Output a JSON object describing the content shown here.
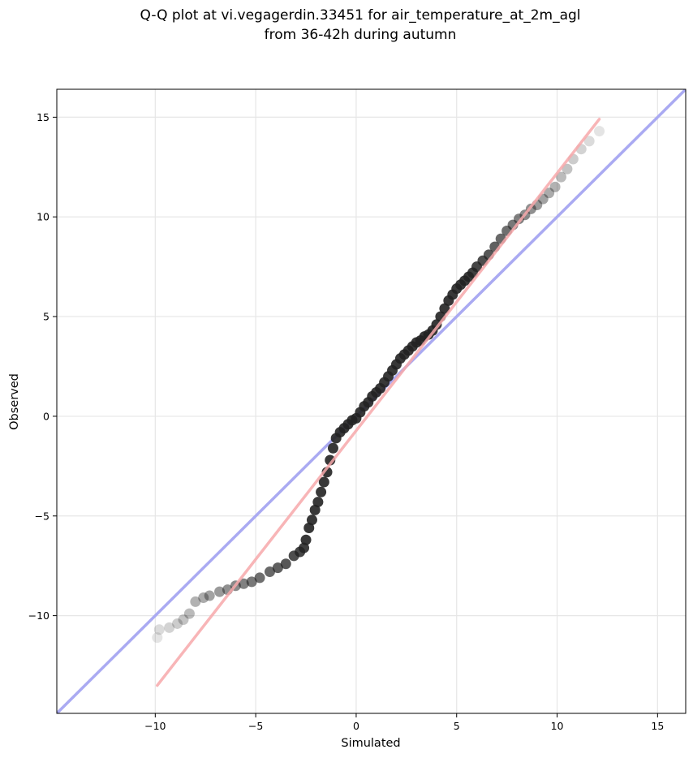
{
  "chart_data": {
    "type": "scatter",
    "title_lines": [
      "Q-Q plot at vi.vegagerdin.33451 for air_temperature_at_2m_agl",
      "from 36-42h during autumn"
    ],
    "xlabel": "Simulated",
    "ylabel": "Observed",
    "xlim": [
      -14.9,
      16.4
    ],
    "ylim": [
      -14.9,
      16.4
    ],
    "x_ticks": [
      -10,
      -5,
      0,
      5,
      10,
      15
    ],
    "y_ticks": [
      -10,
      -5,
      0,
      5,
      10,
      15
    ],
    "tick_labels": {
      "x": [
        "−10",
        "−5",
        "0",
        "5",
        "10",
        "15"
      ],
      "y": [
        "−10",
        "−5",
        "0",
        "5",
        "10",
        "15"
      ]
    },
    "grid": true,
    "colors": {
      "identity_line": "#aaaaf2",
      "fit_line": "#f7a8aa",
      "points": "#222222"
    },
    "identity_line": {
      "x": [
        -14.9,
        16.4
      ],
      "y": [
        -14.9,
        16.4
      ]
    },
    "fit_line": {
      "x": [
        -9.9,
        12.1
      ],
      "y": [
        -13.5,
        14.9
      ]
    },
    "series": [
      {
        "x": [
          -9.9,
          -9.8,
          -9.3,
          -8.9,
          -8.6,
          -8.3,
          -8.0,
          -7.6,
          -7.3,
          -6.8,
          -6.4,
          -6.0,
          -5.6,
          -5.2,
          -4.8,
          -4.3,
          -3.9,
          -3.5,
          -3.1,
          -2.8,
          -2.6,
          -2.5,
          -2.35,
          -2.2,
          -2.05,
          -1.9,
          -1.75,
          -1.6,
          -1.45,
          -1.3,
          -1.15,
          -1.0,
          -0.8,
          -0.6,
          -0.4,
          -0.2,
          0.0,
          0.2,
          0.4,
          0.6,
          0.8,
          1.0,
          1.2,
          1.4,
          1.6,
          1.8,
          2.0,
          2.2,
          2.4,
          2.6,
          2.8,
          3.0,
          3.2,
          3.4,
          3.6,
          3.8,
          4.0,
          4.2,
          4.4,
          4.6,
          4.8,
          5.0,
          5.2,
          5.4,
          5.6,
          5.8,
          6.0,
          6.3,
          6.6,
          6.9,
          7.2,
          7.5,
          7.8,
          8.1,
          8.4,
          8.7,
          9.0,
          9.3,
          9.6,
          9.9,
          10.2,
          10.5,
          10.8,
          11.2,
          11.6,
          12.1
        ],
        "y": [
          -11.1,
          -10.7,
          -10.6,
          -10.4,
          -10.2,
          -9.9,
          -9.3,
          -9.1,
          -9.0,
          -8.8,
          -8.7,
          -8.5,
          -8.4,
          -8.3,
          -8.1,
          -7.8,
          -7.6,
          -7.4,
          -7.0,
          -6.8,
          -6.6,
          -6.2,
          -5.6,
          -5.2,
          -4.7,
          -4.3,
          -3.8,
          -3.3,
          -2.8,
          -2.2,
          -1.6,
          -1.1,
          -0.8,
          -0.6,
          -0.4,
          -0.2,
          -0.1,
          0.2,
          0.5,
          0.7,
          1.0,
          1.2,
          1.4,
          1.7,
          2.0,
          2.3,
          2.6,
          2.9,
          3.1,
          3.3,
          3.5,
          3.7,
          3.8,
          4.0,
          4.1,
          4.3,
          4.6,
          5.0,
          5.4,
          5.8,
          6.1,
          6.4,
          6.6,
          6.8,
          7.0,
          7.2,
          7.5,
          7.8,
          8.1,
          8.5,
          8.9,
          9.3,
          9.6,
          9.9,
          10.1,
          10.4,
          10.6,
          10.9,
          11.2,
          11.5,
          12.0,
          12.4,
          12.9,
          13.4,
          13.8,
          14.3
        ]
      }
    ]
  }
}
